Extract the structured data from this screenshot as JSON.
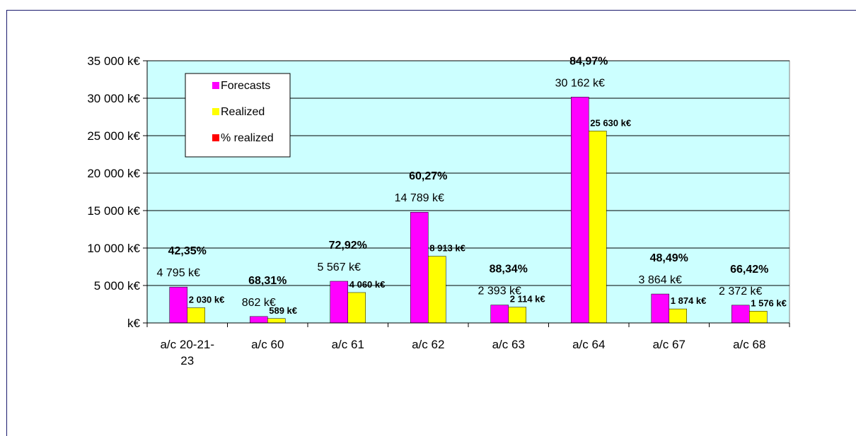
{
  "chart_data": {
    "type": "bar",
    "categories": [
      "a/c 20-21-23",
      "a/c 60",
      "a/c 61",
      "a/c 62",
      "a/c 63",
      "a/c 64",
      "a/c 67",
      "a/c 68"
    ],
    "series": [
      {
        "name": "Forecasts",
        "color": "#ff00ff",
        "values": [
          4795,
          862,
          5567,
          14789,
          2393,
          30162,
          3864,
          2372
        ],
        "labels": [
          "4 795 k€",
          "862 k€",
          "5 567 k€",
          "14 789 k€",
          "2 393 k€",
          "30 162 k€",
          "3 864 k€",
          "2 372 k€"
        ]
      },
      {
        "name": "Realized",
        "color": "#ffff00",
        "values": [
          2030,
          589,
          4060,
          8913,
          2114,
          25630,
          1874,
          1576
        ],
        "labels": [
          "2 030 k€",
          "589 k€",
          "4 060 k€",
          "8 913 k€",
          "2 114 k€",
          "25 630 k€",
          "1 874 k€",
          "1 576 k€"
        ]
      },
      {
        "name": "% realized",
        "color": "#ff0000",
        "values": [
          42.35,
          68.31,
          72.92,
          60.27,
          88.34,
          84.97,
          48.49,
          66.42
        ],
        "labels": [
          "42,35%",
          "68,31%",
          "72,92%",
          "60,27%",
          "88,34%",
          "84,97%",
          "48,49%",
          "66,42%"
        ]
      }
    ],
    "category_labels": [
      [
        "a/c 20-21-",
        "23"
      ],
      [
        "a/c 60"
      ],
      [
        "a/c 61"
      ],
      [
        "a/c 62"
      ],
      [
        "a/c 63"
      ],
      [
        "a/c 64"
      ],
      [
        "a/c 67"
      ],
      [
        "a/c 68"
      ]
    ],
    "ylim": [
      0,
      35000
    ],
    "yticks": [
      0,
      5000,
      10000,
      15000,
      20000,
      25000,
      30000,
      35000
    ],
    "ytick_labels": [
      "k€",
      "5 000 k€",
      "10 000 k€",
      "15 000 k€",
      "20 000 k€",
      "25 000 k€",
      "30 000 k€",
      "35 000 k€"
    ],
    "plot_background": "#ccffff",
    "grid": true,
    "legend": "top-left"
  }
}
